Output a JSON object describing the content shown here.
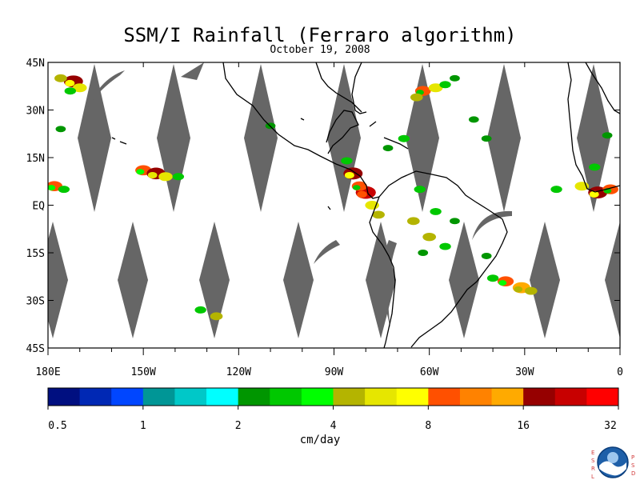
{
  "header": {
    "title": "SSM/I Rainfall (Ferraro algorithm)",
    "date": "October 19, 2008"
  },
  "chart_data": {
    "type": "heatmap",
    "title": "SSM/I Rainfall (Ferraro algorithm)",
    "subtitle": "October 19, 2008",
    "x_ticks": [
      "180E",
      "150W",
      "120W",
      "90W",
      "60W",
      "30W",
      "0"
    ],
    "x_tick_values": [
      -180,
      -150,
      -120,
      -90,
      -60,
      -30,
      0
    ],
    "y_ticks": [
      "45N",
      "30N",
      "15N",
      "EQ",
      "15S",
      "30S",
      "45S"
    ],
    "y_tick_values": [
      45,
      30,
      15,
      0,
      -15,
      -30,
      -45
    ],
    "xlim": [
      -180,
      0
    ],
    "ylim": [
      -45,
      45
    ],
    "colorbar": {
      "unit": "cm/day",
      "tick_labels": [
        "0.5",
        "1",
        "2",
        "4",
        "8",
        "16",
        "32"
      ],
      "tick_values": [
        0.5,
        1,
        2,
        4,
        8,
        16,
        32
      ],
      "colors": [
        "#000f80",
        "#0028b4",
        "#0046ff",
        "#009696",
        "#00c8c8",
        "#00ffff",
        "#009600",
        "#00c800",
        "#00ff00",
        "#b4b400",
        "#e6e600",
        "#ffff00",
        "#ff5000",
        "#ff8200",
        "#ffaa00",
        "#960000",
        "#c80000",
        "#ff0000"
      ]
    },
    "no_data_color": "#666666",
    "rain_cells": [
      {
        "lon": -172,
        "lat": 39,
        "value": 20
      },
      {
        "lon": -170,
        "lat": 37,
        "value": 6
      },
      {
        "lon": -176,
        "lat": 40,
        "value": 4
      },
      {
        "lon": -173,
        "lat": 36,
        "value": 3
      },
      {
        "lon": -178,
        "lat": 6,
        "value": 10
      },
      {
        "lon": -175,
        "lat": 5,
        "value": 3
      },
      {
        "lon": -150,
        "lat": 11,
        "value": 10
      },
      {
        "lon": -146,
        "lat": 10,
        "value": 18
      },
      {
        "lon": -143,
        "lat": 9,
        "value": 6
      },
      {
        "lon": -139,
        "lat": 9,
        "value": 3
      },
      {
        "lon": -132,
        "lat": -33,
        "value": 3
      },
      {
        "lon": -127,
        "lat": -35,
        "value": 4
      },
      {
        "lon": -84,
        "lat": 10,
        "value": 20
      },
      {
        "lon": -80,
        "lat": 4,
        "value": 25
      },
      {
        "lon": -82,
        "lat": 6,
        "value": 8
      },
      {
        "lon": -78,
        "lat": 0,
        "value": 6
      },
      {
        "lon": -76,
        "lat": -3,
        "value": 4
      },
      {
        "lon": -86,
        "lat": 14,
        "value": 3
      },
      {
        "lon": -68,
        "lat": 21,
        "value": 3
      },
      {
        "lon": -73,
        "lat": 18,
        "value": 2
      },
      {
        "lon": -62,
        "lat": 36,
        "value": 9
      },
      {
        "lon": -58,
        "lat": 37,
        "value": 6
      },
      {
        "lon": -64,
        "lat": 34,
        "value": 4
      },
      {
        "lon": -55,
        "lat": 38,
        "value": 3
      },
      {
        "lon": -52,
        "lat": 40,
        "value": 2
      },
      {
        "lon": -65,
        "lat": -5,
        "value": 4
      },
      {
        "lon": -58,
        "lat": -2,
        "value": 3
      },
      {
        "lon": -60,
        "lat": -10,
        "value": 5
      },
      {
        "lon": -55,
        "lat": -13,
        "value": 3
      },
      {
        "lon": -62,
        "lat": -15,
        "value": 2
      },
      {
        "lon": -52,
        "lat": -5,
        "value": 2
      },
      {
        "lon": -63,
        "lat": 5,
        "value": 3
      },
      {
        "lon": -36,
        "lat": -24,
        "value": 10
      },
      {
        "lon": -31,
        "lat": -26,
        "value": 14
      },
      {
        "lon": -40,
        "lat": -23,
        "value": 3
      },
      {
        "lon": -28,
        "lat": -27,
        "value": 4
      },
      {
        "lon": -42,
        "lat": -16,
        "value": 2
      },
      {
        "lon": -7,
        "lat": 4,
        "value": 20
      },
      {
        "lon": -3,
        "lat": 5,
        "value": 9
      },
      {
        "lon": -12,
        "lat": 6,
        "value": 6
      },
      {
        "lon": -20,
        "lat": 5,
        "value": 3
      },
      {
        "lon": -8,
        "lat": 12,
        "value": 3
      },
      {
        "lon": -4,
        "lat": 22,
        "value": 2
      },
      {
        "lon": -42,
        "lat": 21,
        "value": 2
      },
      {
        "lon": -46,
        "lat": 27,
        "value": 2
      },
      {
        "lon": -110,
        "lat": 25,
        "value": 2
      },
      {
        "lon": -176,
        "lat": 24,
        "value": 2
      }
    ]
  }
}
